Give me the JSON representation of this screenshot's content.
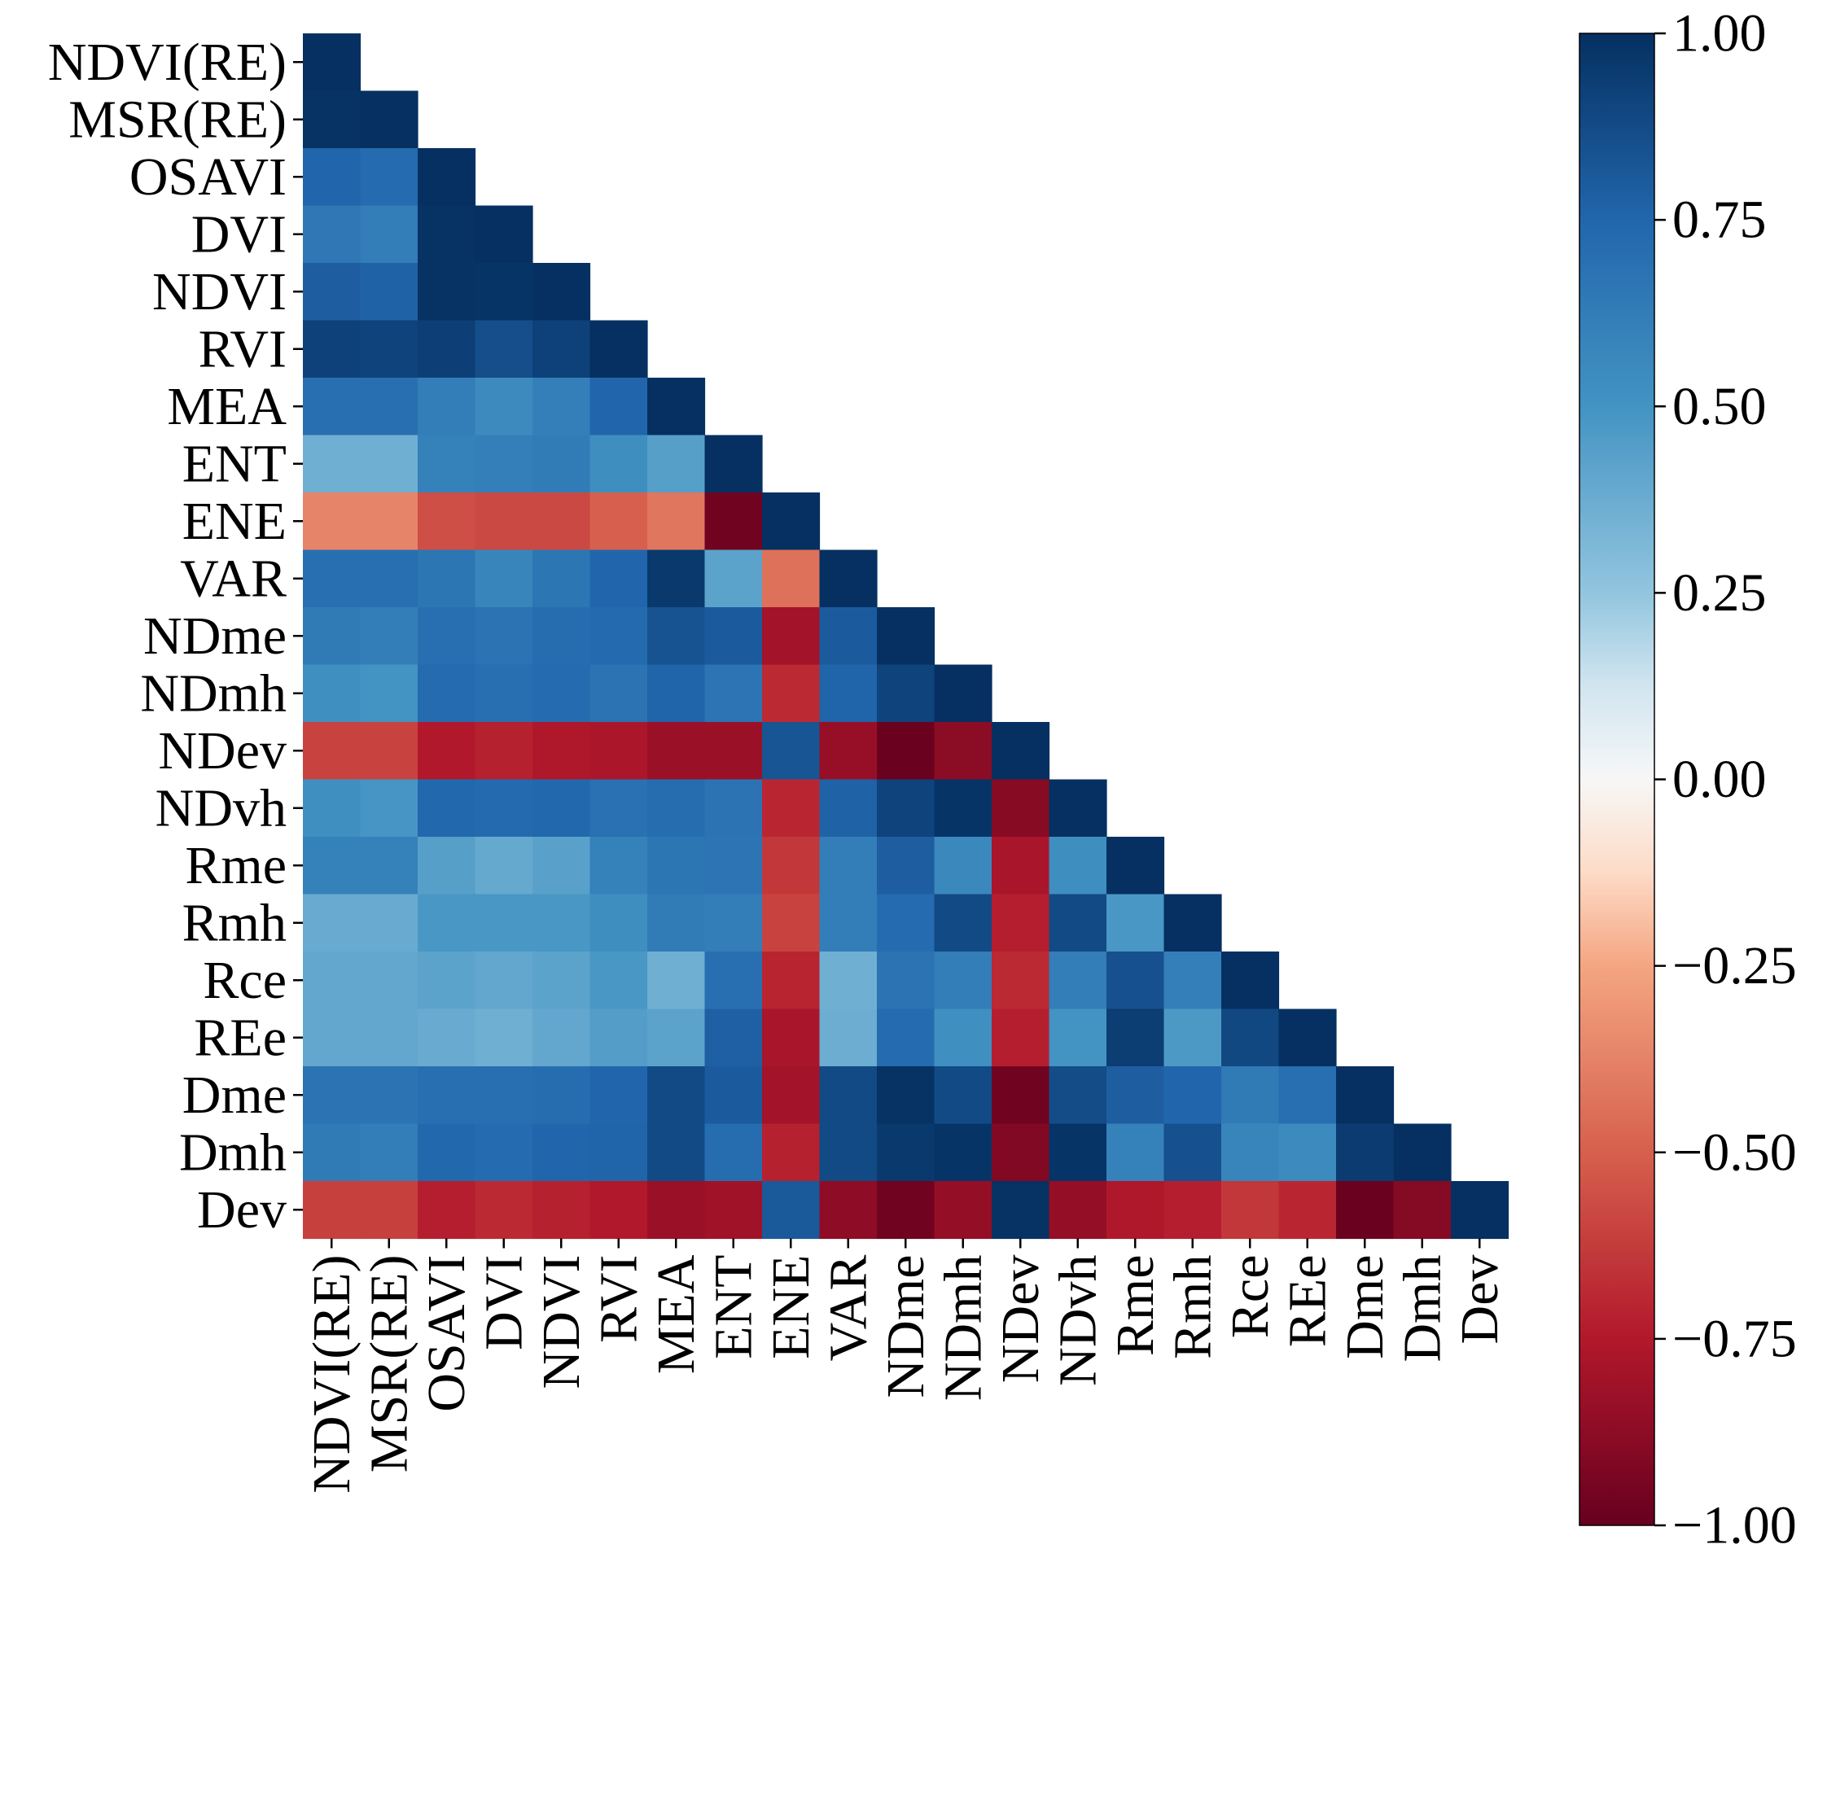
{
  "chart_data": {
    "type": "heatmap",
    "subtype": "lower-triangle correlation matrix",
    "title": "",
    "xlabel": "",
    "ylabel": "",
    "labels": [
      "NDVI(RE)",
      "MSR(RE)",
      "OSAVI",
      "DVI",
      "NDVI",
      "RVI",
      "MEA",
      "ENT",
      "ENE",
      "VAR",
      "NDme",
      "NDmh",
      "NDev",
      "NDvh",
      "Rme",
      "Rmh",
      "Rce",
      "REe",
      "Dme",
      "Dmh",
      "Dev"
    ],
    "matrix": [
      [
        1.0
      ],
      [
        0.99,
        1.0
      ],
      [
        0.75,
        0.72,
        1.0
      ],
      [
        0.65,
        0.62,
        0.99,
        1.0
      ],
      [
        0.79,
        0.77,
        0.99,
        0.98,
        1.0
      ],
      [
        0.92,
        0.91,
        0.93,
        0.86,
        0.92,
        1.0
      ],
      [
        0.7,
        0.7,
        0.62,
        0.55,
        0.61,
        0.75,
        1.0
      ],
      [
        0.36,
        0.36,
        0.6,
        0.61,
        0.63,
        0.53,
        0.44,
        1.0
      ],
      [
        -0.37,
        -0.37,
        -0.56,
        -0.58,
        -0.58,
        -0.5,
        -0.42,
        -0.97,
        1.0
      ],
      [
        0.7,
        0.7,
        0.66,
        0.58,
        0.66,
        0.75,
        0.96,
        0.42,
        -0.44,
        1.0
      ],
      [
        0.64,
        0.62,
        0.7,
        0.68,
        0.71,
        0.73,
        0.84,
        0.8,
        -0.8,
        0.8,
        1.0
      ],
      [
        0.52,
        0.5,
        0.72,
        0.7,
        0.72,
        0.68,
        0.76,
        0.67,
        -0.69,
        0.76,
        0.91,
        1.0
      ],
      [
        -0.6,
        -0.6,
        -0.75,
        -0.72,
        -0.76,
        -0.77,
        -0.83,
        -0.83,
        0.83,
        -0.84,
        -0.99,
        -0.88,
        1.0
      ],
      [
        0.52,
        0.49,
        0.74,
        0.73,
        0.74,
        0.69,
        0.71,
        0.68,
        -0.7,
        0.77,
        0.91,
        0.98,
        -0.89,
        1.0
      ],
      [
        0.6,
        0.6,
        0.44,
        0.39,
        0.43,
        0.6,
        0.66,
        0.67,
        -0.64,
        0.62,
        0.79,
        0.56,
        -0.78,
        0.53,
        1.0
      ],
      [
        0.38,
        0.38,
        0.48,
        0.48,
        0.48,
        0.53,
        0.63,
        0.62,
        -0.6,
        0.62,
        0.72,
        0.88,
        -0.73,
        0.88,
        0.48,
        1.0
      ],
      [
        0.4,
        0.4,
        0.42,
        0.4,
        0.42,
        0.48,
        0.36,
        0.7,
        -0.71,
        0.36,
        0.68,
        0.62,
        -0.69,
        0.62,
        0.85,
        0.61,
        1.0
      ],
      [
        0.4,
        0.4,
        0.38,
        0.36,
        0.4,
        0.45,
        0.42,
        0.78,
        -0.78,
        0.37,
        0.72,
        0.52,
        -0.73,
        0.5,
        0.94,
        0.47,
        0.89,
        1.0
      ],
      [
        0.68,
        0.68,
        0.7,
        0.7,
        0.71,
        0.75,
        0.88,
        0.8,
        -0.8,
        0.88,
        0.99,
        0.88,
        -0.97,
        0.87,
        0.79,
        0.75,
        0.64,
        0.7,
        1.0
      ],
      [
        0.64,
        0.62,
        0.74,
        0.72,
        0.75,
        0.76,
        0.88,
        0.71,
        -0.72,
        0.88,
        0.96,
        0.98,
        -0.91,
        0.98,
        0.6,
        0.85,
        0.58,
        0.55,
        0.95,
        1.0
      ],
      [
        -0.61,
        -0.61,
        -0.73,
        -0.69,
        -0.72,
        -0.75,
        -0.83,
        -0.81,
        0.81,
        -0.87,
        -0.97,
        -0.85,
        0.99,
        -0.85,
        -0.76,
        -0.73,
        -0.64,
        -0.7,
        -0.99,
        -0.9,
        1.0
      ]
    ],
    "colorbar": {
      "colormap": "RdBu",
      "range": [
        -1.0,
        1.0
      ],
      "ticks": [
        1.0,
        0.75,
        0.5,
        0.25,
        0.0,
        -0.25,
        -0.5,
        -0.75,
        -1.0
      ],
      "tick_labels": [
        "1.00",
        "0.75",
        "0.50",
        "0.25",
        "0.00",
        "−0.25",
        "−0.50",
        "−0.75",
        "−1.00"
      ]
    },
    "grid": false,
    "legend": "colorbar at right"
  }
}
